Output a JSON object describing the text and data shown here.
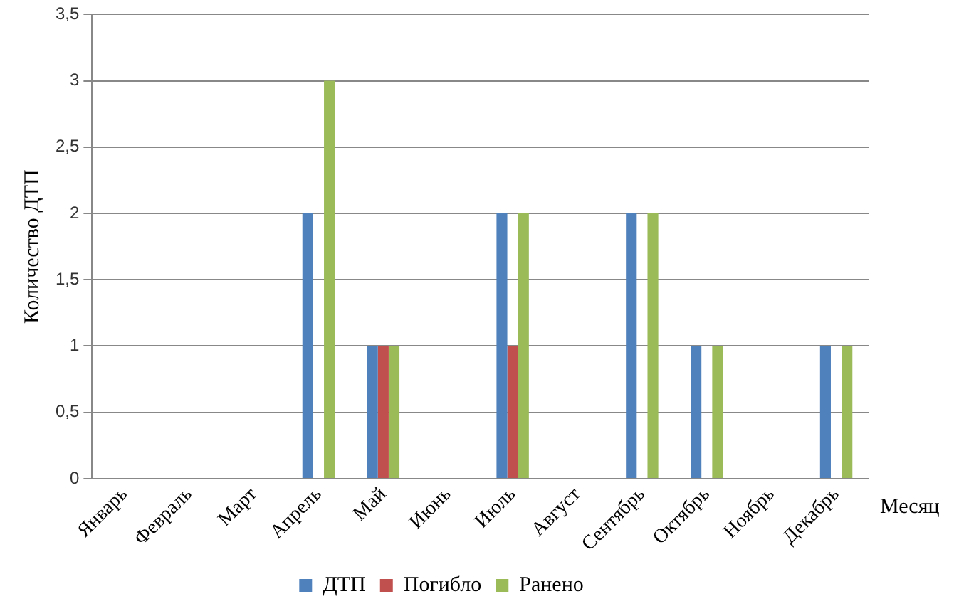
{
  "chart_data": {
    "type": "bar",
    "xlabel": "Месяц",
    "ylabel": "Количество ДТП",
    "categories": [
      "Январь",
      "Февраль",
      "Март",
      "Апрель",
      "Май",
      "Июнь",
      "Июль",
      "Август",
      "Сентябрь",
      "Октябрь",
      "Ноябрь",
      "Декабрь"
    ],
    "series": [
      {
        "name": "ДТП",
        "color": "#4f81bd",
        "values": [
          0,
          0,
          0,
          2,
          1,
          0,
          2,
          0,
          2,
          1,
          0,
          1
        ]
      },
      {
        "name": "Погибло",
        "color": "#c0504d",
        "values": [
          0,
          0,
          0,
          0,
          1,
          0,
          1,
          0,
          0,
          0,
          0,
          0
        ]
      },
      {
        "name": "Ранено",
        "color": "#9bbb59",
        "values": [
          0,
          0,
          0,
          3,
          1,
          0,
          2,
          0,
          2,
          1,
          0,
          1
        ]
      }
    ],
    "ylim": [
      0,
      3.5
    ],
    "yticks": [
      0,
      {
        "value": 0.5,
        "label": "0,5"
      },
      1,
      {
        "value": 1.5,
        "label": "1,5"
      },
      2,
      {
        "value": 2.5,
        "label": "2,5"
      },
      3,
      {
        "value": 3.5,
        "label": "3,5"
      }
    ],
    "grid": "y",
    "legend": "bottom"
  }
}
